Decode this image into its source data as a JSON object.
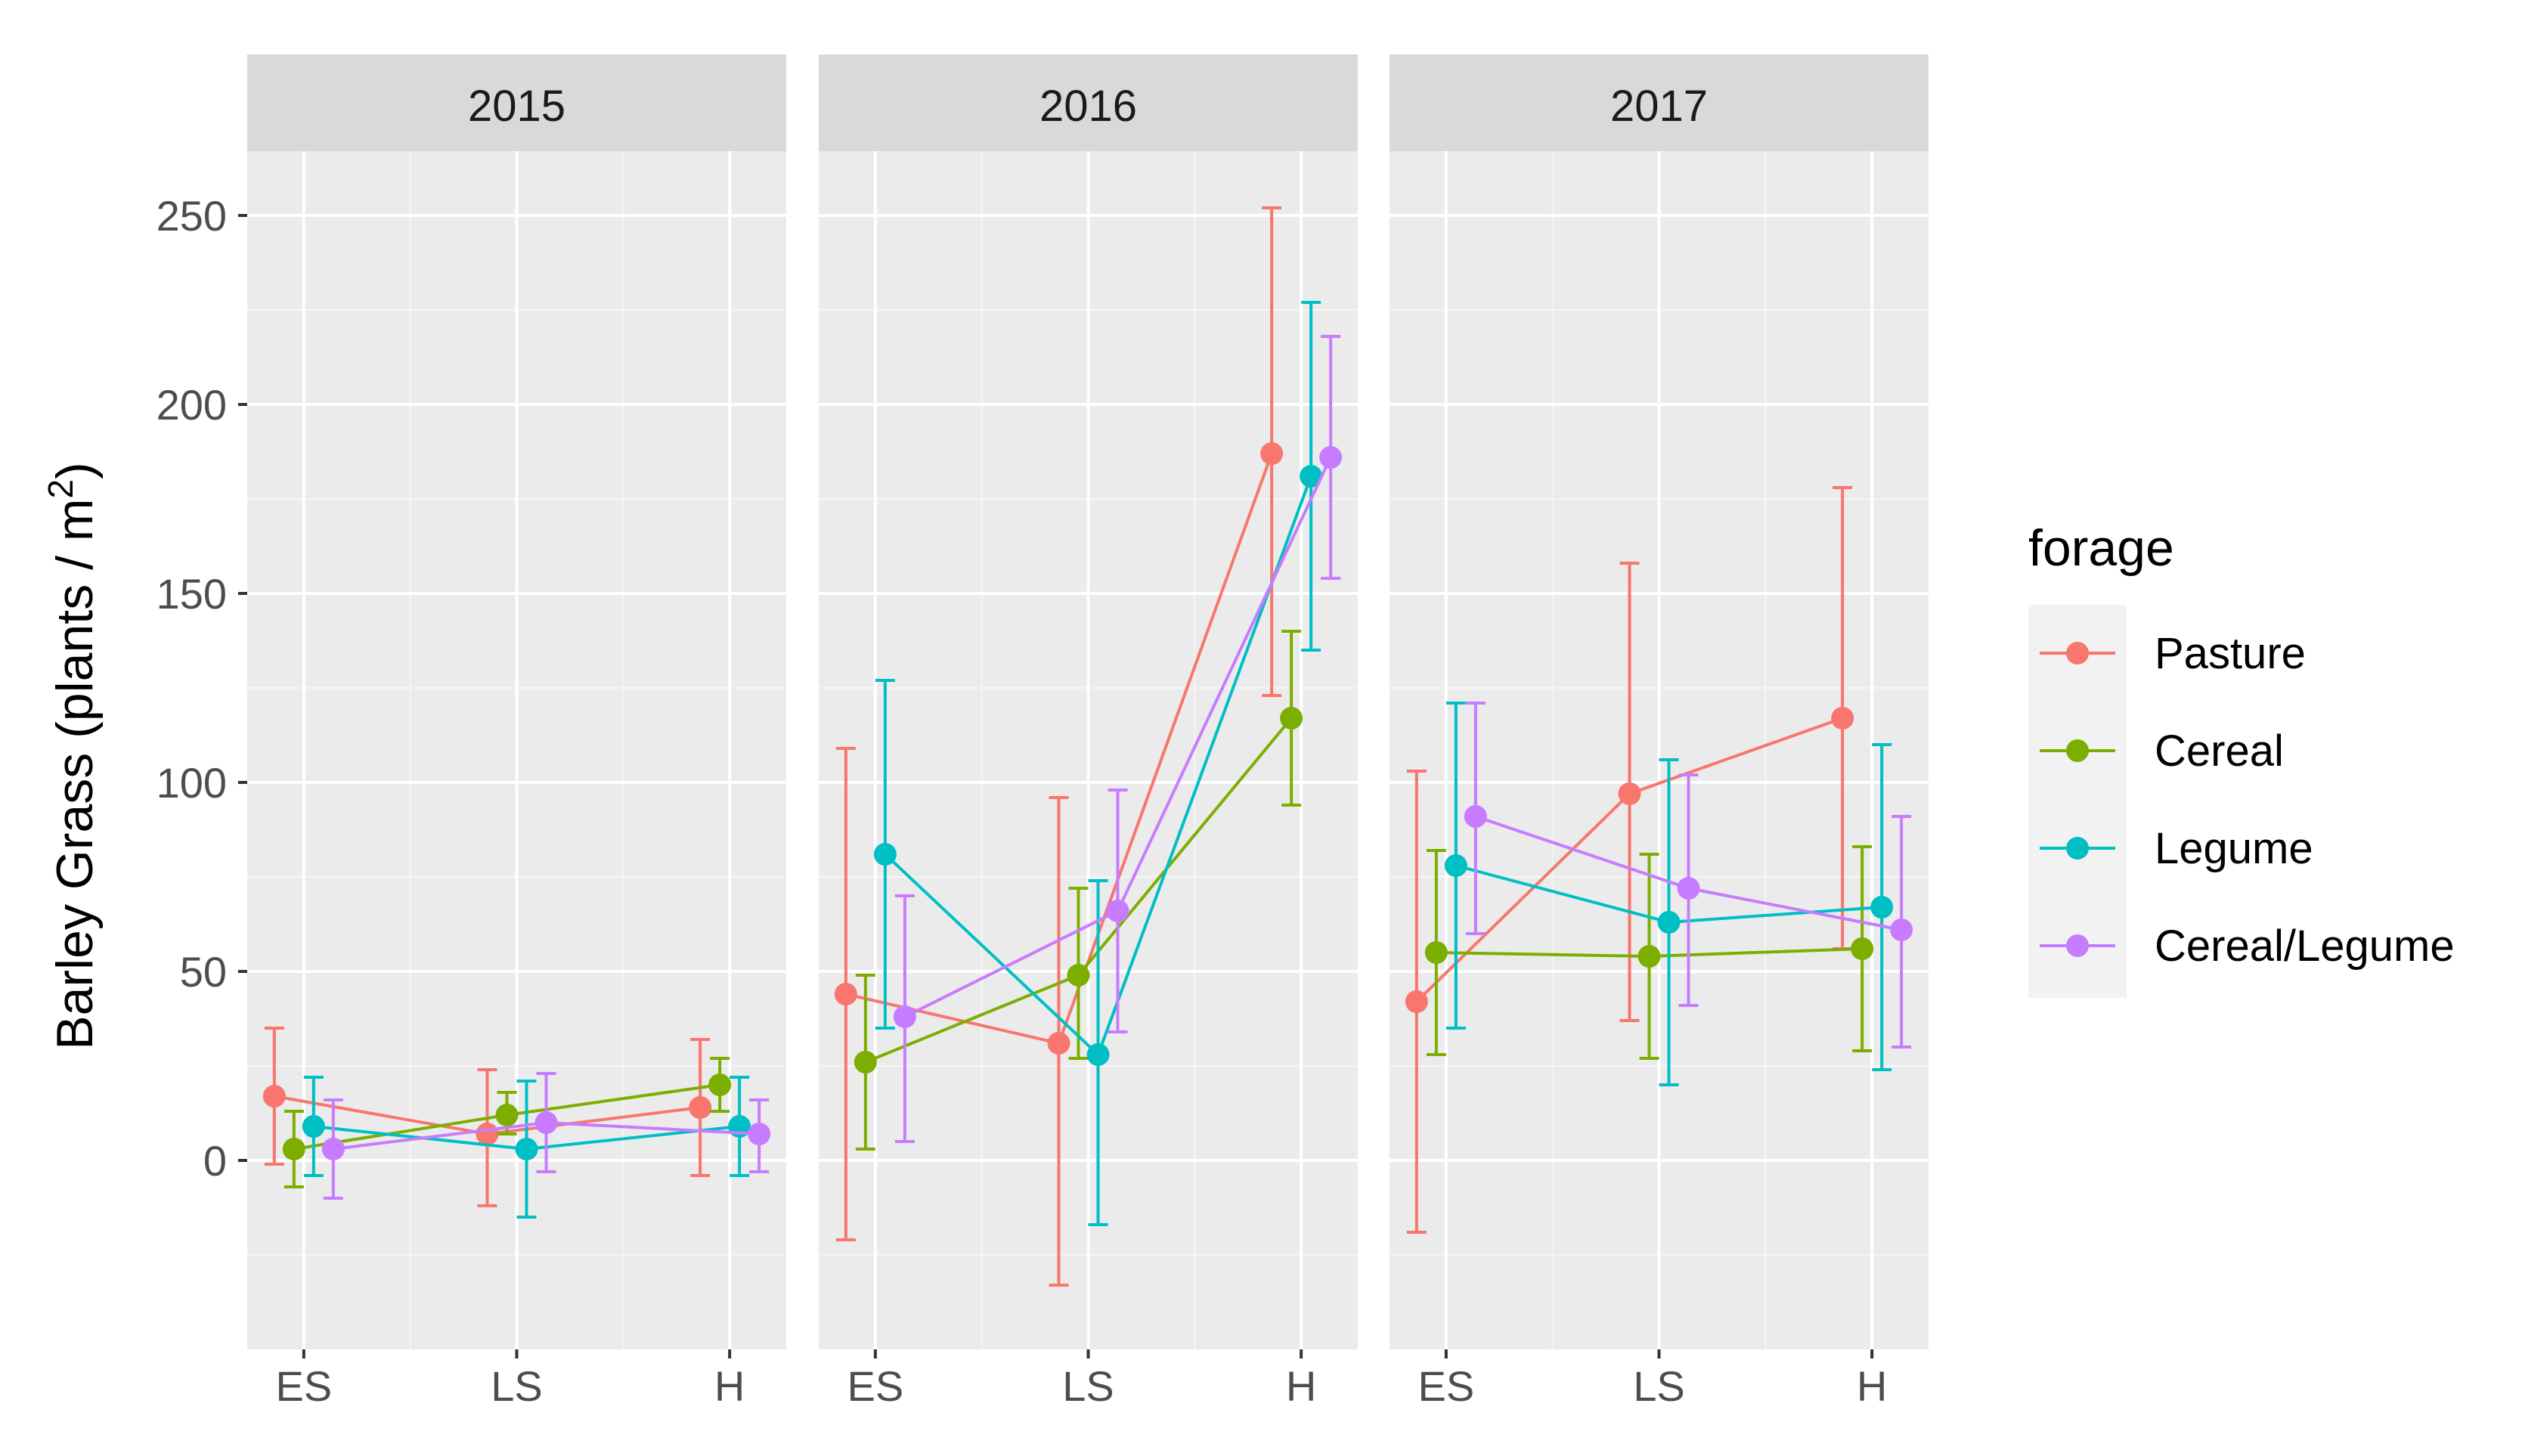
{
  "chart_data": {
    "type": "line",
    "facet_variable": "year",
    "facets": [
      "2015",
      "2016",
      "2017"
    ],
    "categories": [
      "ES",
      "LS",
      "H"
    ],
    "ylabel": "Barley Grass (plants / m",
    "ylabel_superscript": "2",
    "ylabel_suffix": ")",
    "xlabel": "",
    "ylim": [
      -50,
      267
    ],
    "yticks": [
      0,
      50,
      100,
      150,
      200,
      250
    ],
    "grid": true,
    "legend": {
      "title": "forage",
      "position": "right"
    },
    "colors": {
      "Pasture": "#F8766D",
      "Cereal": "#7CAE00",
      "Legume": "#00BFC4",
      "Cereal/Legume": "#C77CFF"
    },
    "series": [
      {
        "name": "Pasture",
        "panels": [
          {
            "facet": "2015",
            "values": [
              17,
              7,
              14
            ],
            "lower": [
              -1,
              -12,
              -4
            ],
            "upper": [
              35,
              24,
              32
            ]
          },
          {
            "facet": "2016",
            "values": [
              44,
              31,
              187
            ],
            "lower": [
              -21,
              -33,
              123
            ],
            "upper": [
              109,
              96,
              252
            ]
          },
          {
            "facet": "2017",
            "values": [
              42,
              97,
              117
            ],
            "lower": [
              -19,
              37,
              56
            ],
            "upper": [
              103,
              158,
              178
            ]
          }
        ]
      },
      {
        "name": "Cereal",
        "panels": [
          {
            "facet": "2015",
            "values": [
              3,
              12,
              20
            ],
            "lower": [
              -7,
              7,
              13
            ],
            "upper": [
              13,
              18,
              27
            ]
          },
          {
            "facet": "2016",
            "values": [
              26,
              49,
              117
            ],
            "lower": [
              3,
              27,
              94
            ],
            "upper": [
              49,
              72,
              140
            ]
          },
          {
            "facet": "2017",
            "values": [
              55,
              54,
              56
            ],
            "lower": [
              28,
              27,
              29
            ],
            "upper": [
              82,
              81,
              83
            ]
          }
        ]
      },
      {
        "name": "Legume",
        "panels": [
          {
            "facet": "2015",
            "values": [
              9,
              3,
              9
            ],
            "lower": [
              -4,
              -15,
              -4
            ],
            "upper": [
              22,
              21,
              22
            ]
          },
          {
            "facet": "2016",
            "values": [
              81,
              28,
              181
            ],
            "lower": [
              35,
              -17,
              135
            ],
            "upper": [
              127,
              74,
              227
            ]
          },
          {
            "facet": "2017",
            "values": [
              78,
              63,
              67
            ],
            "lower": [
              35,
              20,
              24
            ],
            "upper": [
              121,
              106,
              110
            ]
          }
        ]
      },
      {
        "name": "Cereal/Legume",
        "panels": [
          {
            "facet": "2015",
            "values": [
              3,
              10,
              7
            ],
            "lower": [
              -10,
              -3,
              -3
            ],
            "upper": [
              16,
              23,
              16
            ]
          },
          {
            "facet": "2016",
            "values": [
              38,
              66,
              186
            ],
            "lower": [
              5,
              34,
              154
            ],
            "upper": [
              70,
              98,
              218
            ]
          },
          {
            "facet": "2017",
            "values": [
              91,
              72,
              61
            ],
            "lower": [
              60,
              41,
              30
            ],
            "upper": [
              121,
              102,
              91
            ]
          }
        ]
      }
    ]
  }
}
